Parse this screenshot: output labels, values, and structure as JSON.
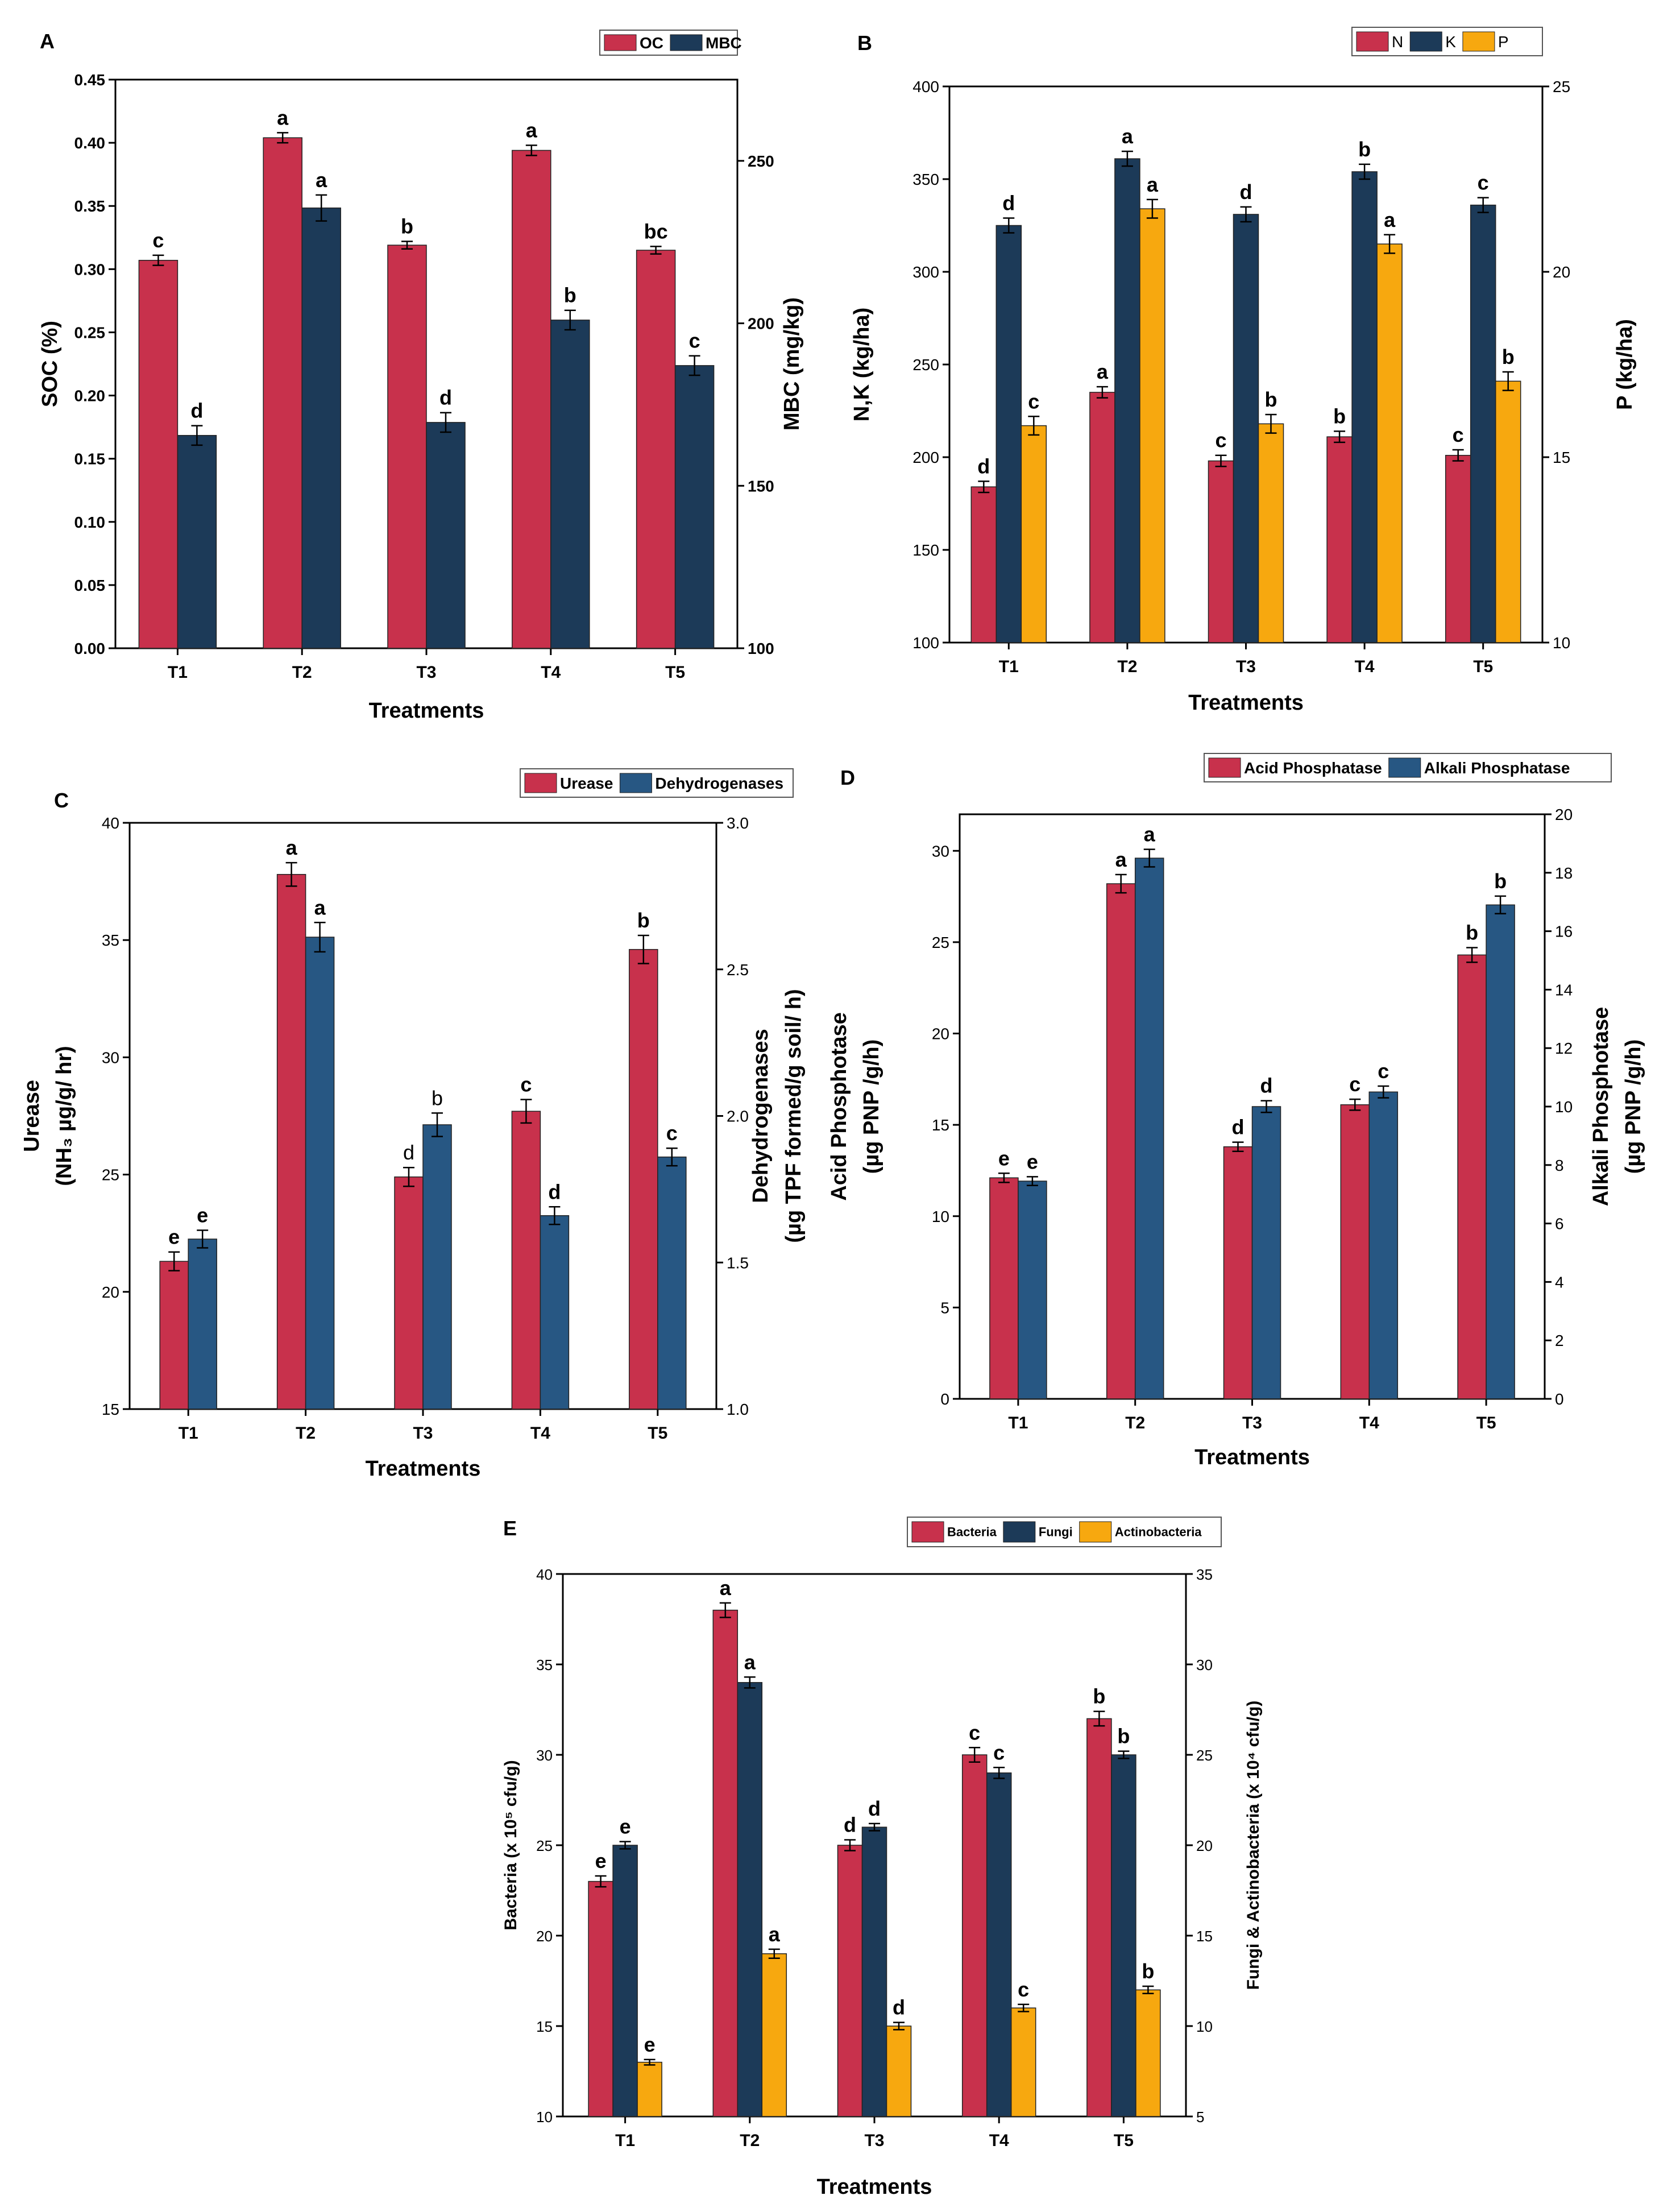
{
  "figure": {
    "x_axis_categories": [
      "T1",
      "T2",
      "T3",
      "T4",
      "T5"
    ]
  },
  "colors": {
    "red": "#c8314c",
    "navy": "#1c3a58",
    "steel": "#275783",
    "orange": "#f7a80f"
  },
  "chart_data": [
    {
      "id": "A",
      "panel_label": "A",
      "type": "bar",
      "title": "",
      "categories": [
        "T1",
        "T2",
        "T3",
        "T4",
        "T5"
      ],
      "xlabel": "Treatments",
      "ylabel_left": [
        "SOC (%)"
      ],
      "ylabel_right": [
        "MBC (mg/kg)"
      ],
      "left_axis": {
        "min": 0,
        "max": 0.45,
        "ticks": [
          "0.00",
          "0.05",
          "0.10",
          "0.15",
          "0.20",
          "0.25",
          "0.30",
          "0.35",
          "0.40",
          "0.45"
        ]
      },
      "right_axis": {
        "min": 100,
        "max": 275,
        "ticks": [
          "100",
          "150",
          "200",
          "250"
        ]
      },
      "legend_placement": "top-right",
      "series": [
        {
          "name": "OC",
          "axis": "left",
          "color": "#c8314c",
          "values": [
            0.307,
            0.404,
            0.319,
            0.394,
            0.315
          ],
          "errors": [
            0.004,
            0.004,
            0.003,
            0.004,
            0.003
          ],
          "labels": [
            "c",
            "a",
            "b",
            "a",
            "bc"
          ]
        },
        {
          "name": "MBC",
          "axis": "right",
          "color": "#1c3a58",
          "values": [
            165.5,
            235.5,
            169.5,
            201.0,
            187.0
          ],
          "errors": [
            3.0,
            4.0,
            3.0,
            3.0,
            3.0
          ],
          "labels": [
            "d",
            "a",
            "d",
            "b",
            "c"
          ]
        }
      ]
    },
    {
      "id": "B",
      "panel_label": "B",
      "type": "bar",
      "title": "",
      "categories": [
        "T1",
        "T2",
        "T3",
        "T4",
        "T5"
      ],
      "xlabel": "Treatments",
      "ylabel_left": [
        "N,K (kg/ha)"
      ],
      "ylabel_right": [
        "P (kg/ha)"
      ],
      "left_axis": {
        "min": 100,
        "max": 400,
        "ticks": [
          "100",
          "150",
          "200",
          "250",
          "300",
          "350",
          "400"
        ]
      },
      "right_axis": {
        "min": 10,
        "max": 25,
        "ticks": [
          "10",
          "15",
          "20",
          "25"
        ]
      },
      "legend_placement": "top-right",
      "series": [
        {
          "name": "N",
          "axis": "left",
          "color": "#c8314c",
          "values": [
            184,
            235,
            198,
            211,
            201
          ],
          "errors": [
            3,
            3,
            3,
            3,
            3
          ],
          "labels": [
            "d",
            "a",
            "c",
            "b",
            "c"
          ]
        },
        {
          "name": "K",
          "axis": "left",
          "color": "#1c3a58",
          "values": [
            325,
            361,
            331,
            354,
            336
          ],
          "errors": [
            4,
            4,
            4,
            4,
            4
          ],
          "labels": [
            "d",
            "a",
            "d",
            "b",
            "c"
          ]
        },
        {
          "name": "P",
          "axis": "right",
          "color": "#f7a80f",
          "values": [
            15.85,
            21.7,
            15.9,
            20.75,
            17.05
          ],
          "errors": [
            0.25,
            0.25,
            0.25,
            0.25,
            0.25
          ],
          "labels": [
            "c",
            "a",
            "b",
            "a",
            "b"
          ]
        }
      ]
    },
    {
      "id": "C",
      "panel_label": "C",
      "type": "bar",
      "title": "",
      "categories": [
        "T1",
        "T2",
        "T3",
        "T4",
        "T5"
      ],
      "xlabel": "Treatments",
      "ylabel_left": [
        "Urease",
        "(NH₃ µg/g/ hr)"
      ],
      "ylabel_right": [
        "Dehydrogenases",
        "(µg TPF formed/g soil/ h)"
      ],
      "left_axis": {
        "min": 15,
        "max": 40,
        "ticks": [
          "15",
          "20",
          "25",
          "30",
          "35",
          "40"
        ]
      },
      "right_axis": {
        "min": 1.0,
        "max": 3.0,
        "ticks": [
          "1.0",
          "1.5",
          "2.0",
          "2.5",
          "3.0"
        ]
      },
      "legend_placement": "top-right",
      "series": [
        {
          "name": "Urease",
          "axis": "left",
          "color": "#c8314c",
          "values": [
            21.3,
            37.8,
            24.9,
            27.7,
            34.6
          ],
          "errors": [
            0.4,
            0.5,
            0.4,
            0.5,
            0.6
          ],
          "labels": [
            "e",
            "a",
            "d",
            "c",
            "b"
          ]
        },
        {
          "name": "Dehydrogenases",
          "axis": "right",
          "color": "#275783",
          "values": [
            1.58,
            2.61,
            1.97,
            1.66,
            1.86
          ],
          "errors": [
            0.03,
            0.05,
            0.04,
            0.03,
            0.03
          ],
          "labels": [
            "e",
            "a",
            "b",
            "d",
            "c"
          ]
        }
      ]
    },
    {
      "id": "D",
      "panel_label": "D",
      "type": "bar",
      "title": "",
      "categories": [
        "T1",
        "T2",
        "T3",
        "T4",
        "T5"
      ],
      "xlabel": "Treatments",
      "ylabel_left": [
        "Acid Phosphotase",
        "(µg PNP /g/h)"
      ],
      "ylabel_right": [
        "Alkali Phosphotase",
        "(µg PNP /g/h)"
      ],
      "left_axis": {
        "min": 0,
        "max": 32,
        "ticks": [
          "0",
          "5",
          "10",
          "15",
          "20",
          "25",
          "30"
        ]
      },
      "right_axis": {
        "min": 0,
        "max": 20,
        "ticks": [
          "0",
          "2",
          "4",
          "6",
          "8",
          "10",
          "12",
          "14",
          "16",
          "18",
          "20"
        ]
      },
      "legend_placement": "top-right",
      "series": [
        {
          "name": "Acid Phosphatase",
          "axis": "left",
          "color": "#c8314c",
          "values": [
            12.1,
            28.2,
            13.8,
            16.1,
            24.3
          ],
          "errors": [
            0.25,
            0.5,
            0.25,
            0.3,
            0.4
          ],
          "labels": [
            "e",
            "a",
            "d",
            "c",
            "b"
          ]
        },
        {
          "name": "Alkali Phosphatase",
          "axis": "right",
          "color": "#275783",
          "values": [
            7.45,
            18.5,
            10.0,
            10.5,
            16.9
          ],
          "errors": [
            0.15,
            0.3,
            0.2,
            0.2,
            0.3
          ],
          "labels": [
            "e",
            "a",
            "d",
            "c",
            "b"
          ]
        }
      ]
    },
    {
      "id": "E",
      "panel_label": "E",
      "type": "bar",
      "title": "",
      "categories": [
        "T1",
        "T2",
        "T3",
        "T4",
        "T5"
      ],
      "xlabel": "Treatments",
      "ylabel_left": [
        "Bacteria (x 10⁵ cfu/g)"
      ],
      "ylabel_right": [
        "Fungi & Actinobacteria (x 10⁴ cfu/g)"
      ],
      "left_axis": {
        "min": 10,
        "max": 40,
        "ticks": [
          "10",
          "15",
          "20",
          "25",
          "30",
          "35",
          "40"
        ]
      },
      "right_axis": {
        "min": 5,
        "max": 35,
        "ticks": [
          "5",
          "10",
          "15",
          "20",
          "25",
          "30",
          "35"
        ]
      },
      "legend_placement": "top-right",
      "series": [
        {
          "name": "Bacteria",
          "axis": "left",
          "color": "#c8314c",
          "values": [
            23,
            38,
            25,
            30,
            32
          ],
          "errors": [
            0.3,
            0.4,
            0.3,
            0.4,
            0.4
          ],
          "labels": [
            "e",
            "a",
            "d",
            "c",
            "b"
          ]
        },
        {
          "name": "Fungi",
          "axis": "right",
          "color": "#1c3a58",
          "values": [
            20,
            29,
            21,
            24,
            25
          ],
          "errors": [
            0.2,
            0.3,
            0.2,
            0.3,
            0.2
          ],
          "labels": [
            "e",
            "a",
            "d",
            "c",
            "b"
          ]
        },
        {
          "name": "Actinobacteria",
          "axis": "right",
          "color": "#f7a80f",
          "values": [
            8,
            14,
            10,
            11,
            12
          ],
          "errors": [
            0.15,
            0.25,
            0.2,
            0.2,
            0.2
          ],
          "labels": [
            "e",
            "a",
            "d",
            "c",
            "b"
          ]
        }
      ]
    }
  ]
}
